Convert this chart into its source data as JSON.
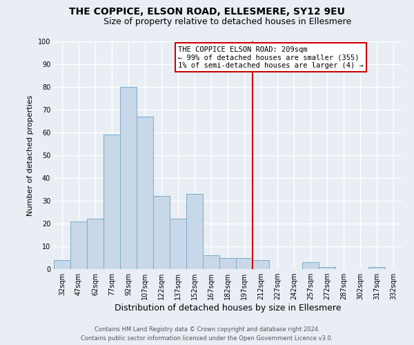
{
  "title": "THE COPPICE, ELSON ROAD, ELLESMERE, SY12 9EU",
  "subtitle": "Size of property relative to detached houses in Ellesmere",
  "xlabel": "Distribution of detached houses by size in Ellesmere",
  "ylabel": "Number of detached properties",
  "bar_labels": [
    "32sqm",
    "47sqm",
    "62sqm",
    "77sqm",
    "92sqm",
    "107sqm",
    "122sqm",
    "137sqm",
    "152sqm",
    "167sqm",
    "182sqm",
    "197sqm",
    "212sqm",
    "227sqm",
    "242sqm",
    "257sqm",
    "272sqm",
    "287sqm",
    "302sqm",
    "317sqm",
    "332sqm"
  ],
  "bar_values": [
    4,
    21,
    22,
    59,
    80,
    67,
    32,
    22,
    33,
    6,
    5,
    5,
    4,
    0,
    0,
    3,
    1,
    0,
    0,
    1,
    0
  ],
  "bar_color": "#c8d8e8",
  "bar_edge_color": "#7aaac8",
  "ylim": [
    0,
    100
  ],
  "vline_idx": 12,
  "vline_label": "THE COPPICE ELSON ROAD: 209sqm",
  "annotation_line1": "← 99% of detached houses are smaller (355)",
  "annotation_line2": "1% of semi-detached houses are larger (4) →",
  "annotation_box_color": "#ffffff",
  "annotation_box_edge": "#cc0000",
  "vline_color": "#cc0000",
  "footer1": "Contains HM Land Registry data © Crown copyright and database right 2024.",
  "footer2": "Contains public sector information licensed under the Open Government Licence v3.0.",
  "background_color": "#e8eef4",
  "grid_color": "#ffffff",
  "title_fontsize": 10,
  "subtitle_fontsize": 9,
  "tick_fontsize": 7,
  "ylabel_fontsize": 8,
  "xlabel_fontsize": 9
}
